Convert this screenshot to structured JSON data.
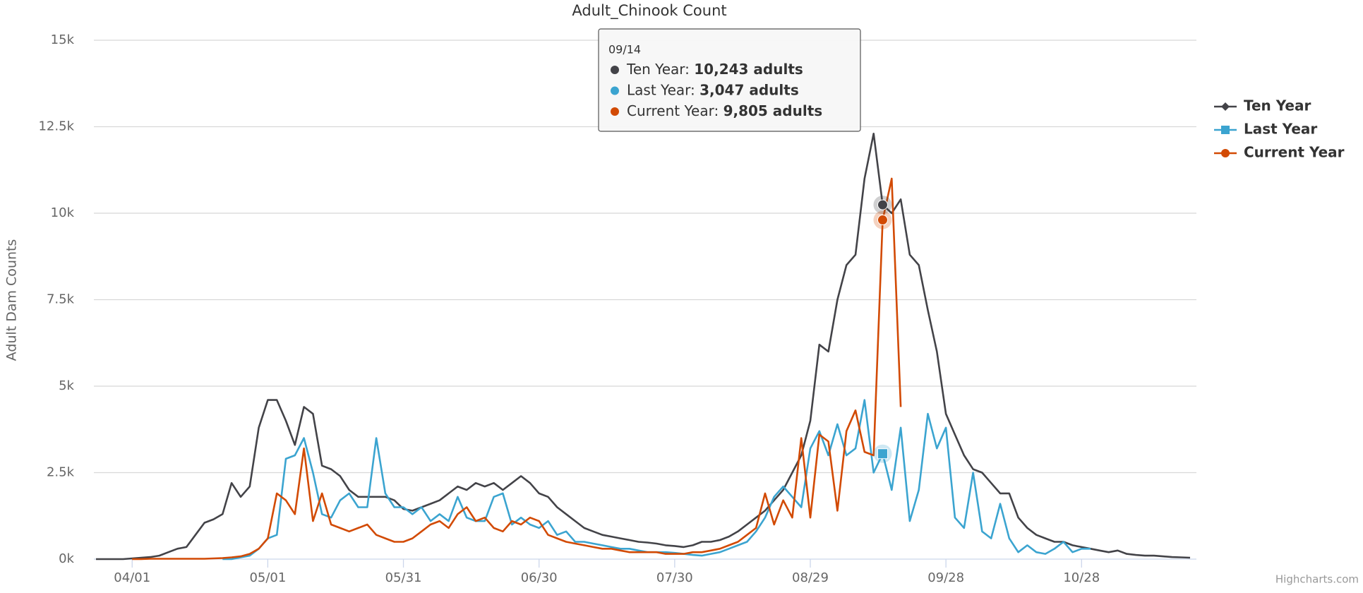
{
  "chart_data": {
    "type": "line",
    "title": "Adult_Chinook Count",
    "y_label": "Adult Dam Counts",
    "credit": "Highcharts.com",
    "ylim": [
      0,
      15000
    ],
    "yticks": [
      {
        "value": 0,
        "label": "0k"
      },
      {
        "value": 2500,
        "label": "2.5k"
      },
      {
        "value": 5000,
        "label": "5k"
      },
      {
        "value": 7500,
        "label": "7.5k"
      },
      {
        "value": 10000,
        "label": "10k"
      },
      {
        "value": 12500,
        "label": "12.5k"
      },
      {
        "value": 15000,
        "label": "15k"
      }
    ],
    "grid": true,
    "legend": "right",
    "categories": [
      null,
      null,
      null,
      null,
      "04/01",
      null,
      null,
      null,
      null,
      null,
      null,
      null,
      null,
      null,
      null,
      null,
      null,
      null,
      null,
      "05/01",
      null,
      null,
      null,
      null,
      null,
      null,
      null,
      null,
      null,
      null,
      null,
      null,
      null,
      null,
      "05/31",
      null,
      null,
      null,
      null,
      null,
      null,
      null,
      null,
      null,
      null,
      null,
      null,
      null,
      null,
      "06/30",
      null,
      null,
      null,
      null,
      null,
      null,
      null,
      null,
      null,
      null,
      null,
      null,
      null,
      null,
      "07/30",
      null,
      null,
      null,
      null,
      null,
      null,
      null,
      null,
      null,
      null,
      null,
      null,
      null,
      null,
      "08/29",
      null,
      null,
      null,
      null,
      null,
      null,
      null,
      null,
      null,
      null,
      null,
      null,
      null,
      null,
      "09/28",
      null,
      null,
      null,
      null,
      null,
      null,
      null,
      null,
      null,
      null,
      null,
      null,
      null,
      null,
      "10/28",
      null,
      null,
      null,
      null,
      null,
      null,
      null,
      null,
      null,
      null,
      null,
      null
    ],
    "series": [
      {
        "name": "Ten Year",
        "color": "#434348",
        "marker": "diamond",
        "values": [
          0,
          0,
          0,
          0,
          20,
          40,
          60,
          100,
          200,
          300,
          350,
          700,
          1050,
          1150,
          1300,
          2200,
          1800,
          2100,
          3800,
          4600,
          4600,
          4000,
          3300,
          4400,
          4200,
          2700,
          2600,
          2400,
          2000,
          1800,
          1800,
          1800,
          1800,
          1700,
          1450,
          1400,
          1500,
          1600,
          1700,
          1900,
          2100,
          2000,
          2200,
          2100,
          2200,
          2000,
          2200,
          2400,
          2200,
          1900,
          1800,
          1500,
          1300,
          1100,
          900,
          800,
          700,
          650,
          600,
          550,
          500,
          480,
          450,
          400,
          380,
          350,
          400,
          500,
          500,
          550,
          650,
          800,
          1000,
          1200,
          1400,
          1700,
          2000,
          2500,
          3000,
          4000,
          6200,
          6000,
          7500,
          8500,
          8800,
          11000,
          12300,
          10243,
          10000,
          10400,
          8800,
          8500,
          7200,
          6000,
          4200,
          3600,
          3000,
          2600,
          2500,
          2200,
          1900,
          1900,
          1200,
          900,
          700,
          600,
          500,
          500,
          400,
          350,
          300,
          250,
          200,
          250,
          150,
          120,
          100,
          100,
          80,
          60,
          50,
          40
        ]
      },
      {
        "name": "Last Year",
        "color": "#3ba4d0",
        "marker": "square",
        "values": [
          null,
          null,
          null,
          null,
          null,
          null,
          null,
          null,
          null,
          null,
          null,
          null,
          null,
          null,
          0,
          0,
          50,
          100,
          300,
          600,
          700,
          2900,
          3000,
          3500,
          2500,
          1300,
          1200,
          1700,
          1900,
          1500,
          1500,
          3500,
          1900,
          1500,
          1500,
          1300,
          1500,
          1100,
          1300,
          1100,
          1800,
          1200,
          1100,
          1100,
          1800,
          1900,
          1000,
          1200,
          1000,
          900,
          1100,
          700,
          800,
          500,
          500,
          450,
          400,
          350,
          300,
          300,
          250,
          200,
          200,
          200,
          180,
          150,
          120,
          100,
          150,
          200,
          300,
          400,
          500,
          800,
          1200,
          1800,
          2100,
          1800,
          1500,
          3200,
          3700,
          3000,
          3900,
          3000,
          3200,
          4600,
          2500,
          3047,
          2000,
          3800,
          1100,
          2000,
          4200,
          3200,
          3800,
          1200,
          900,
          2500,
          800,
          600,
          1600,
          600,
          200,
          400,
          200,
          150,
          300,
          500,
          200,
          300,
          300,
          null,
          null,
          null,
          null,
          null,
          null,
          null,
          null,
          null,
          null,
          null
        ]
      },
      {
        "name": "Current Year",
        "color": "#d24a04",
        "marker": "circle",
        "values": [
          null,
          null,
          null,
          null,
          0,
          0,
          10,
          10,
          10,
          10,
          10,
          10,
          10,
          20,
          30,
          50,
          80,
          150,
          300,
          600,
          1900,
          1700,
          1300,
          3200,
          1100,
          1900,
          1000,
          900,
          800,
          900,
          1000,
          700,
          600,
          500,
          500,
          600,
          800,
          1000,
          1100,
          900,
          1300,
          1500,
          1100,
          1200,
          900,
          800,
          1100,
          1000,
          1200,
          1100,
          700,
          600,
          500,
          450,
          400,
          350,
          300,
          300,
          250,
          200,
          200,
          200,
          200,
          150,
          150,
          150,
          200,
          200,
          250,
          300,
          400,
          500,
          700,
          900,
          1900,
          1000,
          1700,
          1200,
          3500,
          1200,
          3600,
          3400,
          1400,
          3700,
          4300,
          3100,
          3000,
          9805,
          11000,
          4400,
          null,
          null,
          null,
          null,
          null,
          null,
          null,
          null,
          null,
          null,
          null,
          null,
          null,
          null,
          null,
          null,
          null,
          null,
          null,
          null,
          null,
          null,
          null,
          null,
          null,
          null,
          null,
          null,
          null,
          null,
          null,
          null
        ]
      }
    ],
    "tooltip": {
      "title": "09/14",
      "items": [
        {
          "name": "Ten Year",
          "value": 10243,
          "value_label": "10,243 adults"
        },
        {
          "name": "Last Year",
          "value": 3047,
          "value_label": "3,047 adults"
        },
        {
          "name": "Current Year",
          "value": 9805,
          "value_label": "9,805 adults"
        }
      ]
    }
  }
}
